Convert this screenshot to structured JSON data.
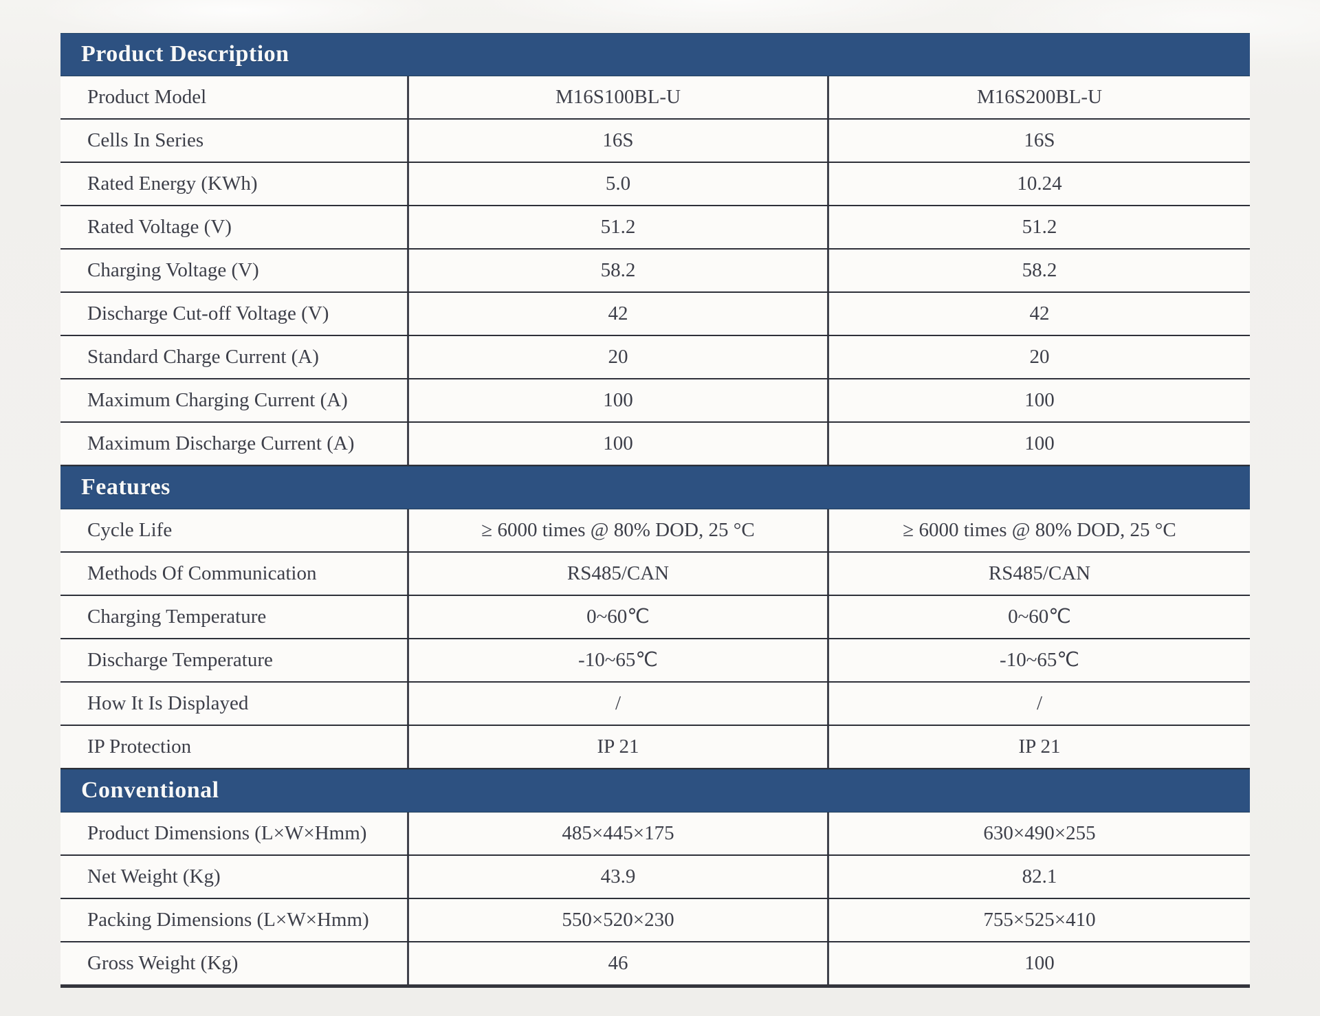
{
  "colors": {
    "section_header_bg": "#2d5181",
    "section_header_text": "#f7f8f8",
    "row_bg": "#fcfbf9",
    "text": "#3d3f49",
    "grid_line": "#2e3039",
    "divider_line": "#41434d",
    "page_bg": "#f1f0ed"
  },
  "table": {
    "sections": [
      {
        "title": "Product Description",
        "rows": [
          {
            "label": "Product Model",
            "values": [
              "M16S100BL-U",
              "M16S200BL-U"
            ]
          },
          {
            "label": "Cells In Series",
            "values": [
              "16S",
              "16S"
            ]
          },
          {
            "label": "Rated Energy (KWh)",
            "values": [
              "5.0",
              "10.24"
            ]
          },
          {
            "label": "Rated Voltage (V)",
            "values": [
              "51.2",
              "51.2"
            ]
          },
          {
            "label": "Charging Voltage (V)",
            "values": [
              "58.2",
              "58.2"
            ]
          },
          {
            "label": "Discharge Cut-off Voltage (V)",
            "values": [
              "42",
              "42"
            ]
          },
          {
            "label": "Standard Charge Current (A)",
            "values": [
              "20",
              "20"
            ]
          },
          {
            "label": "Maximum Charging Current (A)",
            "values": [
              "100",
              "100"
            ]
          },
          {
            "label": "Maximum Discharge Current (A)",
            "values": [
              "100",
              "100"
            ]
          }
        ]
      },
      {
        "title": "Features",
        "rows": [
          {
            "label": "Cycle Life",
            "values": [
              "≥ 6000 times @ 80% DOD, 25 °C",
              "≥ 6000 times @ 80% DOD, 25 °C"
            ]
          },
          {
            "label": "Methods Of Communication",
            "values": [
              "RS485/CAN",
              "RS485/CAN"
            ]
          },
          {
            "label": "Charging Temperature",
            "values": [
              "0~60℃",
              "0~60℃"
            ]
          },
          {
            "label": "Discharge Temperature",
            "values": [
              "-10~65℃",
              "-10~65℃"
            ]
          },
          {
            "label": "How It Is Displayed",
            "values": [
              "/",
              "/"
            ]
          },
          {
            "label": "IP Protection",
            "values": [
              "IP 21",
              "IP 21"
            ]
          }
        ]
      },
      {
        "title": "Conventional",
        "rows": [
          {
            "label": "Product Dimensions (L×W×Hmm)",
            "values": [
              "485×445×175",
              "630×490×255"
            ]
          },
          {
            "label": "Net Weight (Kg)",
            "values": [
              "43.9",
              "82.1"
            ]
          },
          {
            "label": "Packing Dimensions (L×W×Hmm)",
            "values": [
              "550×520×230",
              "755×525×410"
            ]
          },
          {
            "label": "Gross Weight (Kg)",
            "values": [
              "46",
              "100"
            ]
          }
        ]
      }
    ]
  }
}
